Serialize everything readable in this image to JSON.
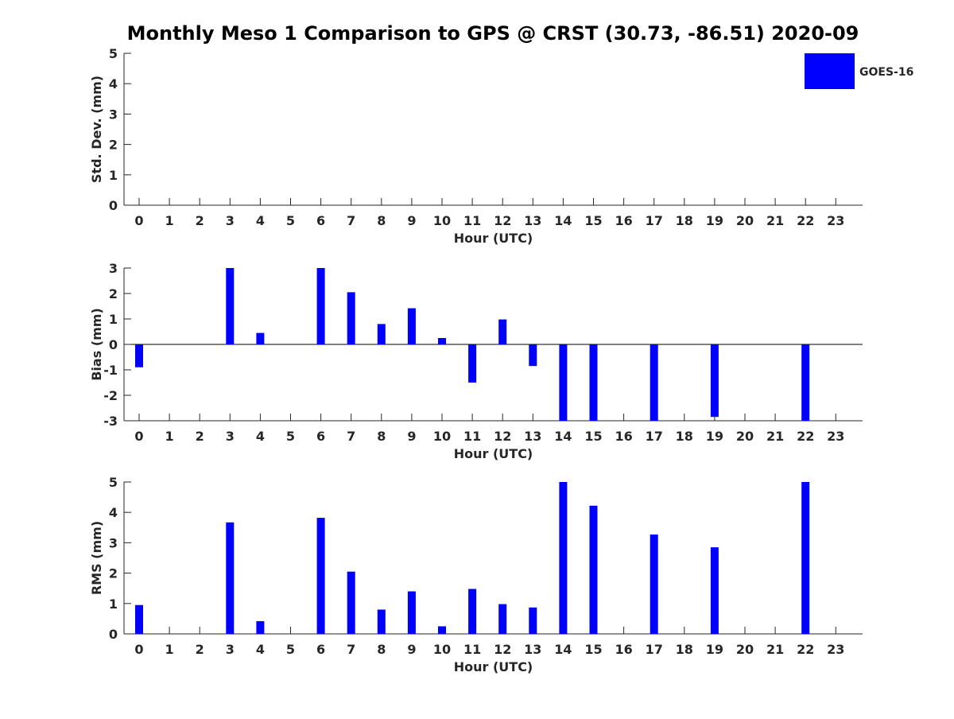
{
  "title": "Monthly Meso 1 Comparison to GPS @ CRST (30.73, -86.51) 2020-09",
  "legend": {
    "label": "GOES-16",
    "color": "#0000ff",
    "placement": "top-right"
  },
  "chart_data": [
    {
      "type": "bar",
      "panel": "std",
      "categories": [
        "0",
        "1",
        "2",
        "3",
        "4",
        "5",
        "6",
        "7",
        "8",
        "9",
        "10",
        "11",
        "12",
        "13",
        "14",
        "15",
        "16",
        "17",
        "18",
        "19",
        "20",
        "21",
        "22",
        "23"
      ],
      "series": [
        {
          "name": "GOES-16",
          "color": "#0000ff",
          "values": [
            null,
            null,
            null,
            null,
            null,
            null,
            null,
            null,
            null,
            null,
            null,
            null,
            null,
            null,
            null,
            null,
            null,
            null,
            null,
            null,
            null,
            null,
            null,
            null
          ]
        }
      ],
      "xlabel": "Hour (UTC)",
      "ylabel": "Std. Dev. (mm)",
      "ylim": [
        0,
        5
      ],
      "yticks": [
        "0",
        "1",
        "2",
        "3",
        "4",
        "5"
      ]
    },
    {
      "type": "bar",
      "panel": "bias",
      "categories": [
        "0",
        "1",
        "2",
        "3",
        "4",
        "5",
        "6",
        "7",
        "8",
        "9",
        "10",
        "11",
        "12",
        "13",
        "14",
        "15",
        "16",
        "17",
        "18",
        "19",
        "20",
        "21",
        "22",
        "23"
      ],
      "series": [
        {
          "name": "GOES-16",
          "color": "#0000ff",
          "values": [
            -0.9,
            null,
            null,
            3.0,
            0.45,
            null,
            3.0,
            2.05,
            0.8,
            1.42,
            0.25,
            -1.5,
            0.98,
            -0.85,
            -3.0,
            -3.0,
            null,
            -3.0,
            null,
            -2.85,
            null,
            null,
            -3.0,
            null
          ]
        }
      ],
      "xlabel": "Hour (UTC)",
      "ylabel": "Bias (mm)",
      "ylim": [
        -3,
        3
      ],
      "yticks": [
        "-3",
        "-2",
        "-1",
        "0",
        "1",
        "2",
        "3"
      ]
    },
    {
      "type": "bar",
      "panel": "rms",
      "categories": [
        "0",
        "1",
        "2",
        "3",
        "4",
        "5",
        "6",
        "7",
        "8",
        "9",
        "10",
        "11",
        "12",
        "13",
        "14",
        "15",
        "16",
        "17",
        "18",
        "19",
        "20",
        "21",
        "22",
        "23"
      ],
      "series": [
        {
          "name": "GOES-16",
          "color": "#0000ff",
          "values": [
            0.95,
            null,
            null,
            3.67,
            0.42,
            null,
            3.82,
            2.05,
            0.8,
            1.4,
            0.25,
            1.48,
            0.98,
            0.87,
            5.0,
            4.22,
            null,
            3.27,
            null,
            2.85,
            null,
            null,
            5.0,
            null
          ]
        }
      ],
      "xlabel": "Hour (UTC)",
      "ylabel": "RMS (mm)",
      "ylim": [
        0,
        5
      ],
      "yticks": [
        "0",
        "1",
        "2",
        "3",
        "4",
        "5"
      ]
    }
  ]
}
